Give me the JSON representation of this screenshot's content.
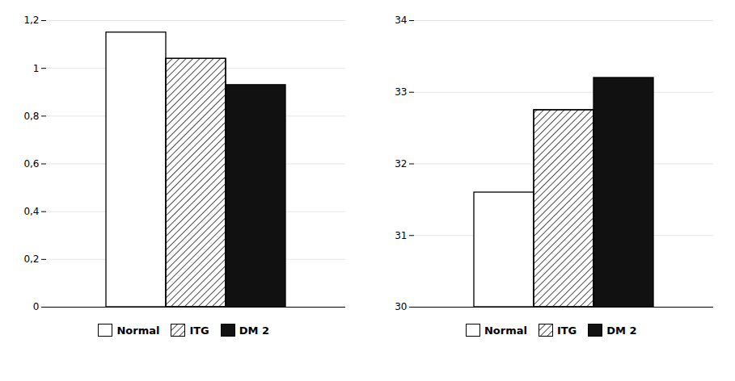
{
  "chart_data": [
    {
      "type": "bar",
      "categories": [
        "Normal",
        "ITG",
        "DM 2"
      ],
      "values": [
        1.15,
        1.04,
        0.93
      ],
      "colors": [
        "#ffffff",
        "#ffffff",
        "#111111"
      ],
      "ylim": [
        0,
        1.2
      ],
      "yticks": [
        0,
        {
          "value": 0.2,
          "label": "0,2"
        },
        {
          "value": 0.4,
          "label": "0,4"
        },
        {
          "value": 0.6,
          "label": "0,6"
        },
        {
          "value": 0.8,
          "label": "0,8"
        },
        1,
        {
          "value": 1.2,
          "label": "1,2"
        }
      ],
      "grid": true,
      "legend": "bottom",
      "tick_labels": "y"
    },
    {
      "type": "bar",
      "categories": [
        "Normal",
        "ITG",
        "DM 2"
      ],
      "values": [
        31.6,
        32.75,
        33.2
      ],
      "colors": [
        "#ffffff",
        "#ffffff",
        "#111111"
      ],
      "ylim": [
        30,
        34
      ],
      "yticks": [
        30,
        31,
        32,
        33,
        34
      ],
      "grid": true,
      "legend": "bottom",
      "tick_labels": "y"
    }
  ]
}
